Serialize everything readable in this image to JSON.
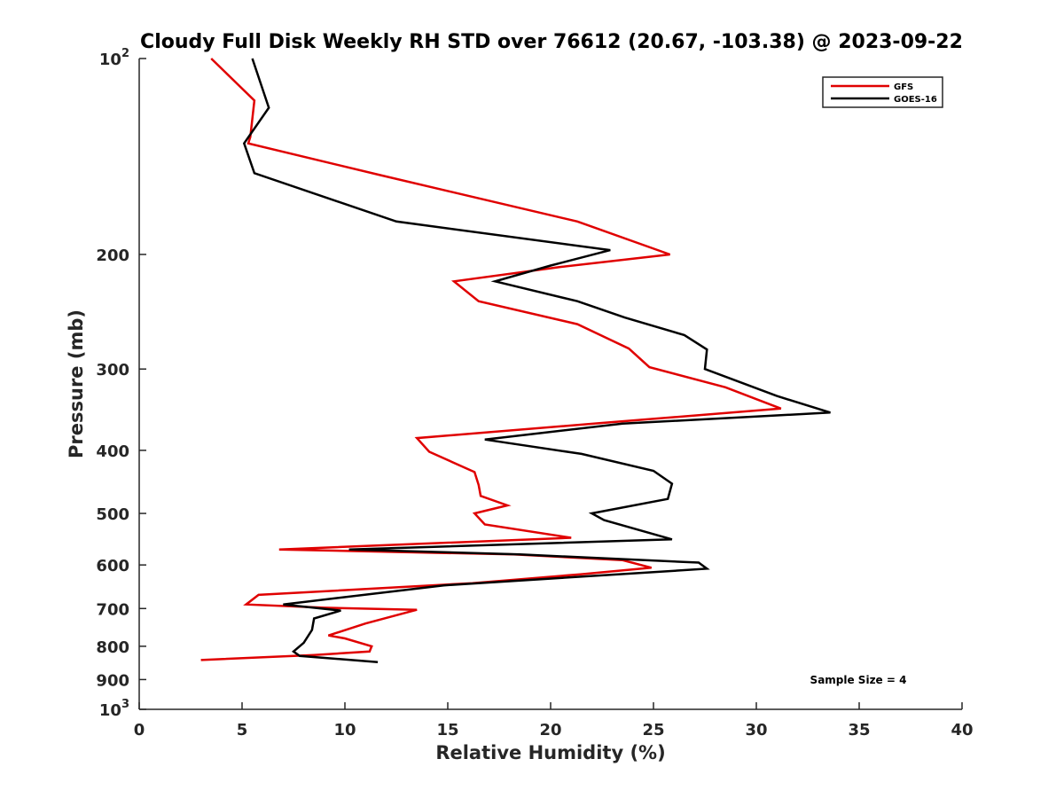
{
  "chart_data": {
    "type": "line",
    "title": "Cloudy Full Disk Weekly RH STD over 76612 (20.67, -103.38) @ 2023-09-22",
    "xlabel": "Relative Humidity (%)",
    "ylabel": "Pressure (mb)",
    "xlim": [
      0,
      40
    ],
    "ylim": [
      100,
      1000
    ],
    "yscale": "log",
    "y_reversed": true,
    "x_ticks": [
      "0",
      "5",
      "10",
      "15",
      "20",
      "25",
      "30",
      "35",
      "40"
    ],
    "y_ticks": [
      {
        "value": 100,
        "base": "10",
        "exp": "2"
      },
      {
        "value": 200,
        "label": "200"
      },
      {
        "value": 300,
        "label": "300"
      },
      {
        "value": 400,
        "label": "400"
      },
      {
        "value": 500,
        "label": "500"
      },
      {
        "value": 600,
        "label": "600"
      },
      {
        "value": 700,
        "label": "700"
      },
      {
        "value": 800,
        "label": "800"
      },
      {
        "value": 900,
        "label": "900"
      },
      {
        "value": 1000,
        "base": "10",
        "exp": "3"
      }
    ],
    "legend_position": "top-right",
    "annotation": "Sample Size = 4",
    "series": [
      {
        "name": "GFS",
        "color": "#e00000",
        "points": [
          [
            3.5,
            100
          ],
          [
            5.6,
            116
          ],
          [
            5.4,
            132
          ],
          [
            5.3,
            135
          ],
          [
            11.7,
            151
          ],
          [
            21.3,
            178
          ],
          [
            25.8,
            200
          ],
          [
            20.5,
            209
          ],
          [
            15.3,
            220
          ],
          [
            16.5,
            236
          ],
          [
            21.3,
            256
          ],
          [
            23.8,
            279
          ],
          [
            24.8,
            298
          ],
          [
            28.5,
            320
          ],
          [
            31.2,
            345
          ],
          [
            22.5,
            363
          ],
          [
            13.5,
            383
          ],
          [
            14.1,
            402
          ],
          [
            16.3,
            432
          ],
          [
            16.5,
            452
          ],
          [
            16.6,
            470
          ],
          [
            17.9,
            486
          ],
          [
            16.3,
            500
          ],
          [
            16.8,
            520
          ],
          [
            21.0,
            545
          ],
          [
            6.8,
            568
          ],
          [
            18.2,
            578
          ],
          [
            23.5,
            590
          ],
          [
            24.9,
            606
          ],
          [
            21.5,
            620
          ],
          [
            16.2,
            640
          ],
          [
            5.8,
            667
          ],
          [
            5.2,
            690
          ],
          [
            9.0,
            698
          ],
          [
            13.5,
            703
          ],
          [
            11.0,
            738
          ],
          [
            9.2,
            770
          ],
          [
            10.0,
            778
          ],
          [
            11.3,
            800
          ],
          [
            11.2,
            815
          ],
          [
            8.5,
            825
          ],
          [
            3.0,
            840
          ]
        ]
      },
      {
        "name": "GOES-16",
        "color": "#000000",
        "points": [
          [
            5.5,
            100
          ],
          [
            6.3,
            119
          ],
          [
            5.1,
            135
          ],
          [
            5.6,
            150
          ],
          [
            12.5,
            178
          ],
          [
            22.9,
            197
          ],
          [
            20.0,
            208
          ],
          [
            17.3,
            220
          ],
          [
            21.3,
            236
          ],
          [
            23.6,
            250
          ],
          [
            26.5,
            266
          ],
          [
            27.6,
            280
          ],
          [
            27.5,
            300
          ],
          [
            31.0,
            330
          ],
          [
            33.6,
            350
          ],
          [
            23.5,
            364
          ],
          [
            16.8,
            385
          ],
          [
            21.5,
            405
          ],
          [
            25.0,
            430
          ],
          [
            25.9,
            450
          ],
          [
            25.7,
            475
          ],
          [
            22.0,
            500
          ],
          [
            22.6,
            512
          ],
          [
            25.9,
            548
          ],
          [
            10.2,
            568
          ],
          [
            18.5,
            578
          ],
          [
            27.2,
            595
          ],
          [
            27.6,
            608
          ],
          [
            14.8,
            645
          ],
          [
            7.0,
            690
          ],
          [
            9.8,
            705
          ],
          [
            8.5,
            725
          ],
          [
            8.4,
            755
          ],
          [
            8.0,
            790
          ],
          [
            7.5,
            815
          ],
          [
            7.8,
            828
          ],
          [
            11.6,
            846
          ]
        ]
      }
    ]
  }
}
